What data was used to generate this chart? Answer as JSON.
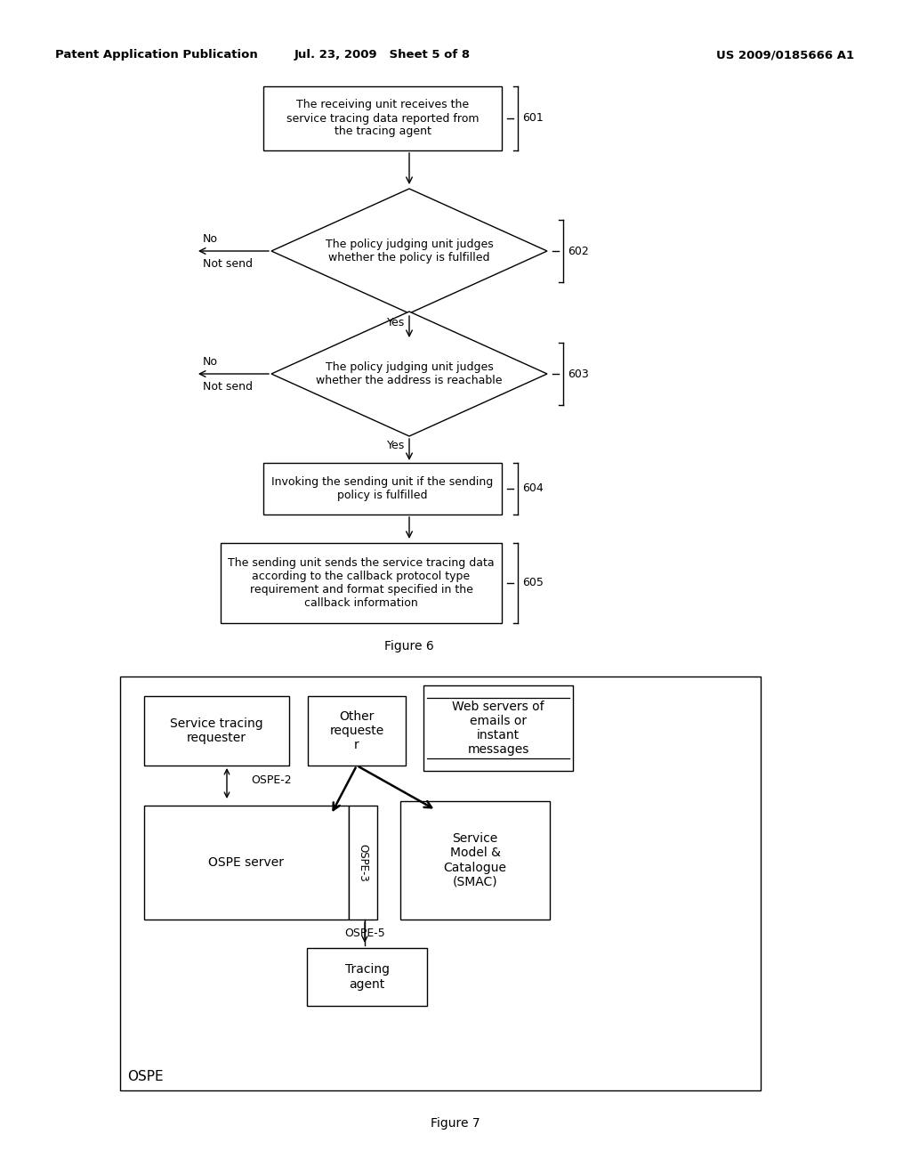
{
  "header_left": "Patent Application Publication",
  "header_mid": "Jul. 23, 2009   Sheet 5 of 8",
  "header_right": "US 2009/0185666 A1",
  "fig6_caption": "Figure 6",
  "fig7_caption": "Figure 7",
  "box601_text": "The receiving unit receives the\nservice tracing data reported from\nthe tracing agent",
  "box601_label": "601",
  "diamond602_text": "The policy judging unit judges\nwhether the policy is fulfilled",
  "diamond602_label": "602",
  "diamond603_text": "The policy judging unit judges\nwhether the address is reachable",
  "diamond603_label": "603",
  "box604_text": "Invoking the sending unit if the sending\npolicy is fulfilled",
  "box604_label": "604",
  "box605_text": "The sending unit sends the service tracing data\naccording to the callback protocol type\nrequirement and format specified in the\ncallback information",
  "box605_label": "605",
  "no_label1": "No",
  "not_send1": "Not send",
  "yes_label1": "Yes",
  "no_label2": "No",
  "not_send2": "Not send",
  "yes_label2": "Yes",
  "fig7_outer_label": "OSPE",
  "fig7_box_str": "Service tracing\nrequester",
  "fig7_box_other": "Other\nrequeste\nr",
  "fig7_box_web": "Web servers of\nemails or\ninstant\nmessages",
  "fig7_box_ospe": "OSPE server",
  "fig7_box_smac": "Service\nModel &\nCatalogue\n(SMAC)",
  "fig7_box_tracing": "Tracing\nagent",
  "fig7_ospe2": "OSPE-2",
  "fig7_ospe3": "OSPE-3",
  "fig7_ospe5": "OSPE-5",
  "bg_color": "#ffffff",
  "line_color": "#000000"
}
